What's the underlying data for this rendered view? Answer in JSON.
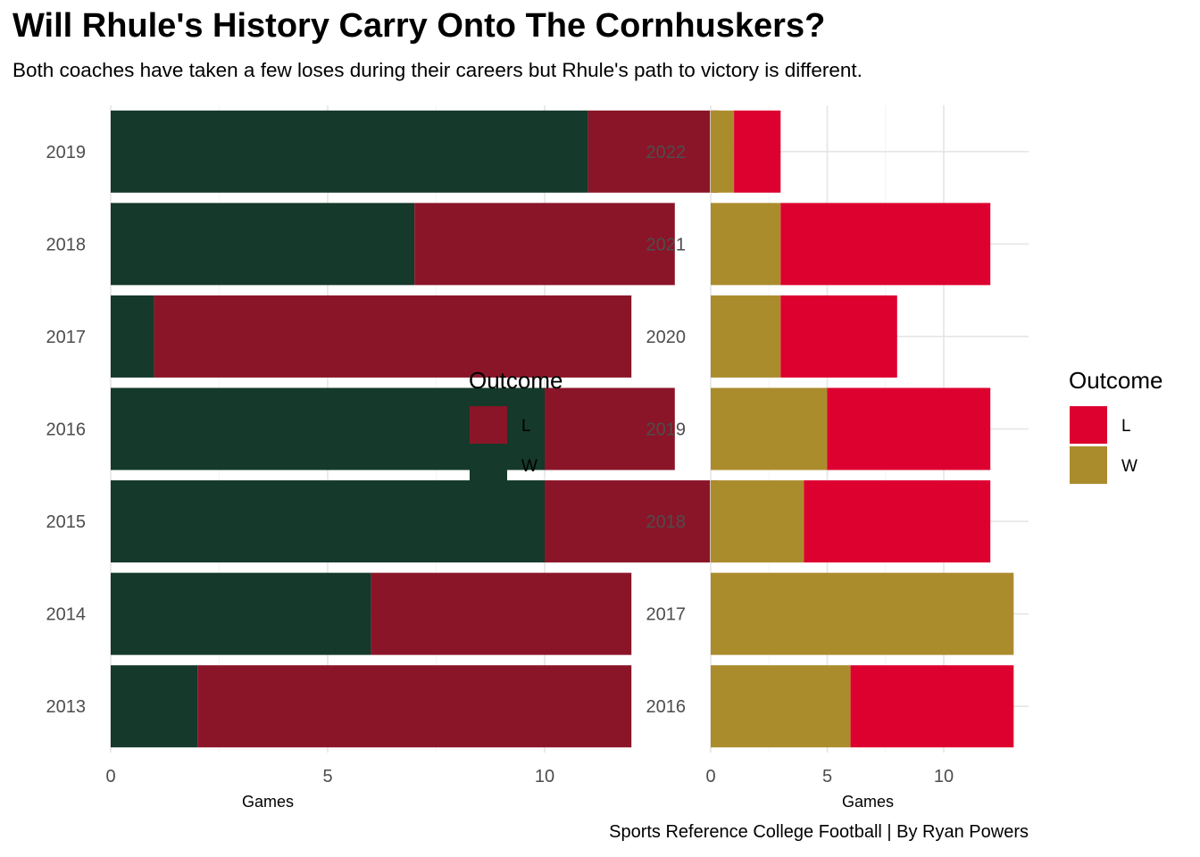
{
  "title": "Will Rhule's History Carry Onto The Cornhuskers?",
  "subtitle": "Both coaches have taken a few loses during their careers but Rhule's path to victory is different.",
  "caption": "Sports Reference College Football | By Ryan Powers",
  "chart_data": [
    {
      "type": "bar",
      "orientation": "horizontal",
      "stacked": true,
      "categories": [
        "2019",
        "2018",
        "2017",
        "2016",
        "2015",
        "2014",
        "2013"
      ],
      "series": [
        {
          "name": "W",
          "color": "#15392B",
          "values": [
            11,
            7,
            1,
            10,
            10,
            6,
            2
          ]
        },
        {
          "name": "L",
          "color": "#8B1528",
          "values": [
            3,
            6,
            11,
            3,
            4,
            6,
            10
          ]
        }
      ],
      "xlabel": "Games",
      "ylabel": "",
      "xlim": [
        0,
        14.7
      ],
      "xticks": [
        0,
        5,
        10
      ],
      "grid": true,
      "legend": {
        "title": "Outcome",
        "entries": [
          "L",
          "W"
        ],
        "placement": "right"
      }
    },
    {
      "type": "bar",
      "orientation": "horizontal",
      "stacked": true,
      "categories": [
        "2022",
        "2021",
        "2020",
        "2019",
        "2018",
        "2017",
        "2016"
      ],
      "series": [
        {
          "name": "W",
          "color": "#AB8C2D",
          "values": [
            1,
            3,
            3,
            5,
            4,
            13,
            6
          ]
        },
        {
          "name": "L",
          "color": "#DD0130",
          "values": [
            2,
            9,
            5,
            7,
            8,
            0,
            7
          ]
        }
      ],
      "xlabel": "Games",
      "ylabel": "",
      "xlim": [
        0,
        13.65
      ],
      "xticks": [
        0,
        5,
        10
      ],
      "grid": true,
      "legend": {
        "title": "Outcome",
        "entries": [
          "L",
          "W"
        ],
        "placement": "right"
      }
    }
  ]
}
